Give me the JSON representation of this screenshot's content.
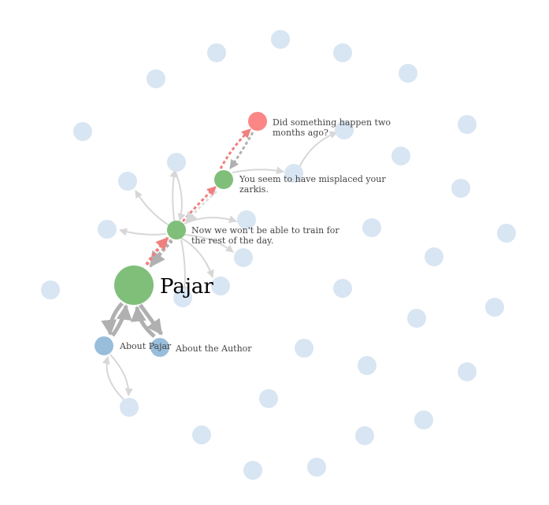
{
  "colors": {
    "background_node": "#d8e5f2",
    "topic_node": "#98bedc",
    "passage_node": "#80bf7a",
    "choice_node": "#fb8686",
    "edge_plain": "#d7d7d7",
    "edge_thick": "#b0b0b0",
    "edge_highlight": "#f07f7f",
    "label": "#444444"
  },
  "graph": {
    "root": {
      "id": "pajar",
      "label": "Pajar",
      "kind": "passage",
      "importance": "large"
    },
    "nodes": [
      {
        "id": "n-won-t-train",
        "kind": "passage",
        "label_lines": [
          "Now we won't be able to train for",
          "the rest of the day."
        ]
      },
      {
        "id": "n-misplaced-zarkis",
        "kind": "passage",
        "label_lines": [
          "You seem to have misplaced your",
          "zarkis."
        ]
      },
      {
        "id": "n-something-happen",
        "kind": "choice",
        "label_lines": [
          "Did something happen two",
          "months ago?"
        ]
      },
      {
        "id": "n-about-pajar",
        "kind": "topic",
        "label_lines": [
          "About Pajar"
        ]
      },
      {
        "id": "n-about-author",
        "kind": "topic",
        "label_lines": [
          "About the Author"
        ]
      }
    ],
    "edges": [
      {
        "from": "pajar",
        "to": "n-won-t-train",
        "style": "highlight"
      },
      {
        "from": "n-won-t-train",
        "to": "pajar",
        "style": "thick-dotted"
      },
      {
        "from": "n-won-t-train",
        "to": "n-misplaced-zarkis",
        "style": "highlight"
      },
      {
        "from": "n-misplaced-zarkis",
        "to": "n-won-t-train",
        "style": "plain-dotted"
      },
      {
        "from": "n-misplaced-zarkis",
        "to": "n-something-happen",
        "style": "highlight"
      },
      {
        "from": "n-something-happen",
        "to": "n-misplaced-zarkis",
        "style": "thick-dotted"
      },
      {
        "from": "pajar",
        "to": "n-about-pajar",
        "style": "thick"
      },
      {
        "from": "n-about-pajar",
        "to": "pajar",
        "style": "thick"
      },
      {
        "from": "pajar",
        "to": "n-about-author",
        "style": "thick"
      },
      {
        "from": "n-about-author",
        "to": "pajar",
        "style": "thick"
      }
    ],
    "background_node_count": 41
  }
}
